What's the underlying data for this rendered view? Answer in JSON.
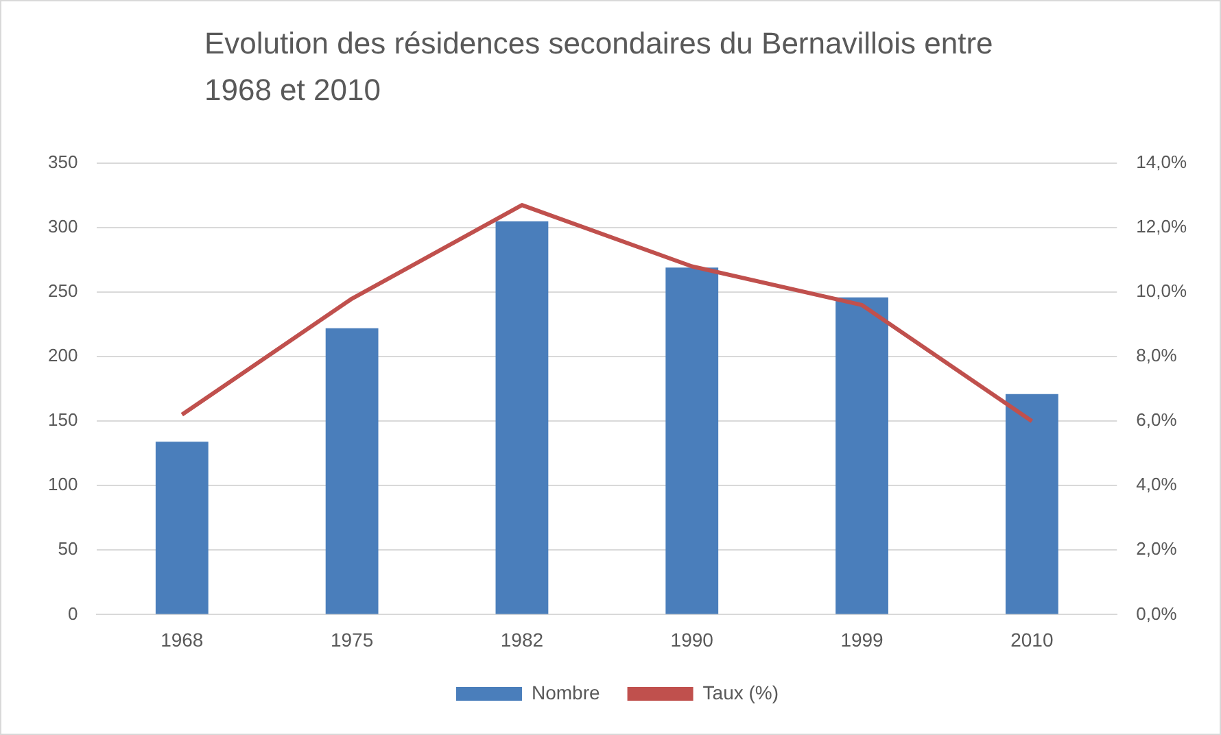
{
  "chart_data": {
    "type": "bar",
    "title": "Evolution des résidences secondaires du Bernavillois entre 1968 et 2010",
    "categories": [
      "1968",
      "1975",
      "1982",
      "1990",
      "1999",
      "2010"
    ],
    "series": [
      {
        "name": "Nombre",
        "color": "#4a7ebb",
        "values": [
          134,
          222,
          305,
          269,
          246,
          171
        ]
      },
      {
        "name": "Taux (%)",
        "type": "line",
        "axis": "y2",
        "color": "#c0504d",
        "values": [
          6.2,
          9.8,
          12.7,
          10.8,
          9.6,
          6.0
        ]
      }
    ],
    "ylim": [
      0,
      350
    ],
    "yticks": [
      0,
      50,
      100,
      150,
      200,
      250,
      300,
      350
    ],
    "y2lim": [
      0,
      14
    ],
    "y2ticks": [
      {
        "value": 0,
        "label": "0,0%"
      },
      {
        "value": 2,
        "label": "2,0%"
      },
      {
        "value": 4,
        "label": "4,0%"
      },
      {
        "value": 6,
        "label": "6,0%"
      },
      {
        "value": 8,
        "label": "8,0%"
      },
      {
        "value": 10,
        "label": "10,0%"
      },
      {
        "value": 12,
        "label": "12,0%"
      },
      {
        "value": 14,
        "label": "14,0%"
      }
    ],
    "grid": "y",
    "legend": "bottom",
    "marker": "none"
  }
}
